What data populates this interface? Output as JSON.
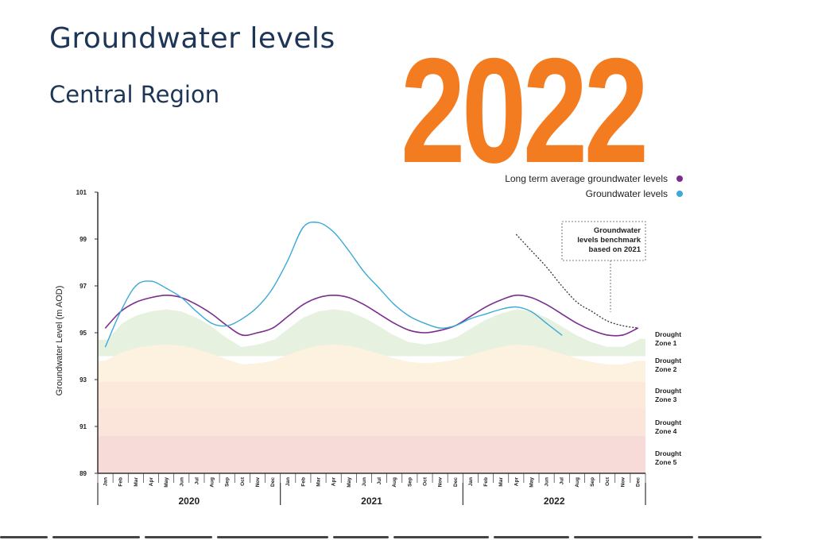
{
  "header": {
    "title": "Groundwater levels",
    "subtitle": "Central Region",
    "year": "2022"
  },
  "colors": {
    "title": "#1d3557",
    "year": "#f47c20",
    "long_term_average": "#7b2d8e",
    "groundwater": "#3ca9d8"
  },
  "chart_data": {
    "type": "line",
    "ylabel": "Groundwater Level (m AOD)",
    "ylim": [
      89,
      101
    ],
    "yticks": [
      89,
      91,
      93,
      95,
      97,
      99,
      101
    ],
    "month_labels": [
      "Jan",
      "Feb",
      "Mar",
      "Apr",
      "May",
      "Jun",
      "Jul",
      "Aug",
      "Sep",
      "Oct",
      "Nov",
      "Dec",
      "Jan",
      "Feb",
      "Mar",
      "Apr",
      "May",
      "Jun",
      "Jul",
      "Aug",
      "Sep",
      "Oct",
      "Nov",
      "Dec",
      "Jan",
      "Feb",
      "Mar",
      "Apr",
      "May",
      "Jun",
      "Jul",
      "Aug",
      "Sep",
      "Oct",
      "Nov",
      "Dec"
    ],
    "year_labels": [
      "2020",
      "2021",
      "2022"
    ],
    "legend": {
      "placement": "top-right",
      "entries": [
        "Long term average groundwater levels",
        "Groundwater levels"
      ]
    },
    "series": [
      {
        "name": "Long term average groundwater levels",
        "color": "#7b2d8e",
        "values": [
          95.2,
          95.9,
          96.3,
          96.5,
          96.6,
          96.5,
          96.2,
          95.8,
          95.3,
          94.9,
          95.0,
          95.2,
          95.7,
          96.2,
          96.5,
          96.6,
          96.5,
          96.2,
          95.8,
          95.4,
          95.1,
          95.0,
          95.1,
          95.3,
          95.7,
          96.1,
          96.4,
          96.6,
          96.5,
          96.2,
          95.8,
          95.4,
          95.1,
          94.9,
          94.9,
          95.2
        ]
      },
      {
        "name": "Groundwater levels",
        "color": "#3ca9d8",
        "values": [
          94.4,
          95.9,
          97.0,
          97.2,
          96.9,
          96.5,
          95.9,
          95.4,
          95.3,
          95.6,
          96.1,
          96.9,
          98.1,
          99.5,
          99.7,
          99.3,
          98.5,
          97.6,
          96.9,
          96.2,
          95.7,
          95.4,
          95.2,
          95.3,
          95.6,
          95.8,
          96.0,
          96.1,
          95.9,
          95.4,
          94.9,
          null,
          null,
          null,
          null,
          null
        ]
      }
    ],
    "benchmark": {
      "label": "Groundwater levels benchmark based on 2021",
      "label_lines": [
        "Groundwater",
        "levels benchmark",
        "based on 2021"
      ],
      "values": [
        null,
        null,
        null,
        null,
        null,
        null,
        null,
        null,
        null,
        null,
        null,
        null,
        null,
        null,
        null,
        null,
        null,
        null,
        null,
        null,
        null,
        null,
        null,
        null,
        null,
        null,
        null,
        99.2,
        98.5,
        97.8,
        97.0,
        96.3,
        95.9,
        95.5,
        95.3,
        95.2
      ]
    },
    "drought_zones": [
      {
        "label": [
          "Drought",
          "Zone 1"
        ],
        "color": "#e6f2df"
      },
      {
        "label": [
          "Drought",
          "Zone 2"
        ],
        "color": "#fdf1df"
      },
      {
        "label": [
          "Drought",
          "Zone 3"
        ],
        "color": "#fde9dc"
      },
      {
        "label": [
          "Drought",
          "Zone 4"
        ],
        "color": "#fbe4da"
      },
      {
        "label": [
          "Drought",
          "Zone 5"
        ],
        "color": "#f6dbd8"
      }
    ]
  }
}
